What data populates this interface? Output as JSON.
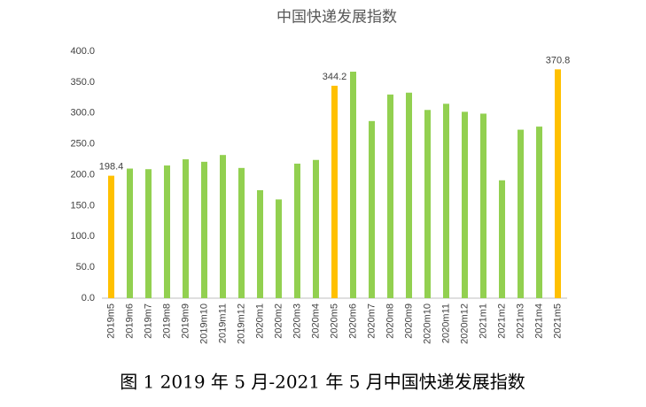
{
  "chart_data": {
    "type": "bar",
    "title": "中国快递发展指数",
    "caption": "图 1 2019 年 5 月-2021 年 5 月中国快递发展指数",
    "categories": [
      "2019m5",
      "2019m6",
      "2019m7",
      "2019m8",
      "2019m9",
      "2019m10",
      "2019m11",
      "2019m12",
      "2020m1",
      "2020m2",
      "2020m3",
      "2020m4",
      "2020m5",
      "2020m6",
      "2020m7",
      "2020m8",
      "2020m9",
      "2020m10",
      "2020m11",
      "2020m12",
      "2021m1",
      "2021m2",
      "2021m3",
      "2021m4",
      "2021m5"
    ],
    "values": [
      198.4,
      210,
      209,
      215,
      225,
      221,
      232,
      211,
      175,
      160,
      218,
      224,
      344.2,
      367,
      287,
      330,
      333,
      305,
      315,
      302,
      299,
      191,
      273,
      278,
      370.8
    ],
    "value_labels": [
      "198.4",
      null,
      null,
      null,
      null,
      null,
      null,
      null,
      null,
      null,
      null,
      null,
      "344.2",
      null,
      null,
      null,
      null,
      null,
      null,
      null,
      null,
      null,
      null,
      null,
      "370.8"
    ],
    "colors": [
      "#ffc000",
      "#92d050",
      "#92d050",
      "#92d050",
      "#92d050",
      "#92d050",
      "#92d050",
      "#92d050",
      "#92d050",
      "#92d050",
      "#92d050",
      "#92d050",
      "#ffc000",
      "#92d050",
      "#92d050",
      "#92d050",
      "#92d050",
      "#92d050",
      "#92d050",
      "#92d050",
      "#92d050",
      "#92d050",
      "#92d050",
      "#92d050",
      "#ffc000"
    ],
    "ylim": [
      0,
      400
    ],
    "yticks": [
      {
        "value": 0,
        "label": "0.0"
      },
      {
        "value": 50,
        "label": "50.0"
      },
      {
        "value": 100,
        "label": "100.0"
      },
      {
        "value": 150,
        "label": "150.0"
      },
      {
        "value": 200,
        "label": "200.0"
      },
      {
        "value": 250,
        "label": "250.0"
      },
      {
        "value": 300,
        "label": "300.0"
      },
      {
        "value": 350,
        "label": "350.0"
      },
      {
        "value": 400,
        "label": "400.0"
      }
    ],
    "grid": false
  }
}
